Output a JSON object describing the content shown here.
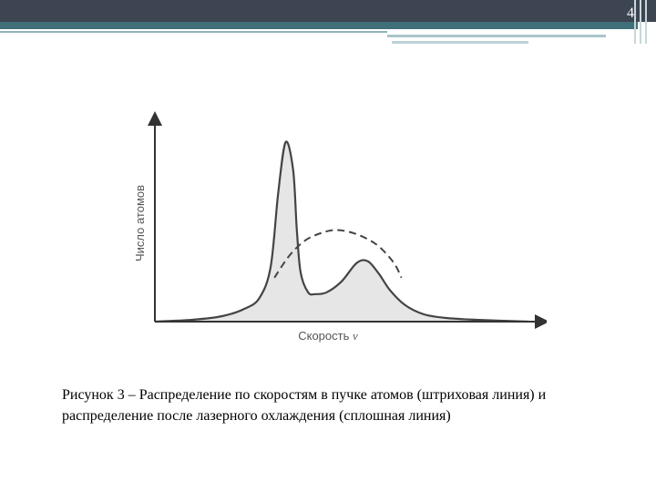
{
  "page_number": "4",
  "caption": "Рисунок 3 – Распределение по скоростям в пучке атомов (штриховая линия) и распределение после лазерного охлаждения (сплошная линия)",
  "chart_data": {
    "type": "area",
    "title": "",
    "xlabel": "Скорость",
    "xlabel_symbol": "v",
    "ylabel": "Число атомов",
    "ylim": [
      0,
      1
    ],
    "xlim": [
      0,
      1
    ],
    "grid": false,
    "series": [
      {
        "style": "dashed",
        "x": [
          0.32,
          0.36,
          0.4,
          0.44,
          0.48,
          0.52,
          0.56,
          0.6,
          0.64,
          0.66
        ],
        "y": [
          0.24,
          0.36,
          0.44,
          0.48,
          0.5,
          0.49,
          0.46,
          0.41,
          0.32,
          0.24
        ]
      },
      {
        "style": "solid-filled",
        "x": [
          0.0,
          0.1,
          0.18,
          0.24,
          0.28,
          0.31,
          0.33,
          0.35,
          0.37,
          0.38,
          0.39,
          0.41,
          0.43,
          0.46,
          0.5,
          0.54,
          0.57,
          0.6,
          0.63,
          0.67,
          0.72,
          0.78,
          0.86,
          1.0
        ],
        "y": [
          0.0,
          0.01,
          0.03,
          0.07,
          0.13,
          0.3,
          0.7,
          0.98,
          0.83,
          0.5,
          0.27,
          0.16,
          0.15,
          0.16,
          0.22,
          0.32,
          0.33,
          0.26,
          0.17,
          0.09,
          0.04,
          0.02,
          0.01,
          0.0
        ]
      }
    ]
  }
}
